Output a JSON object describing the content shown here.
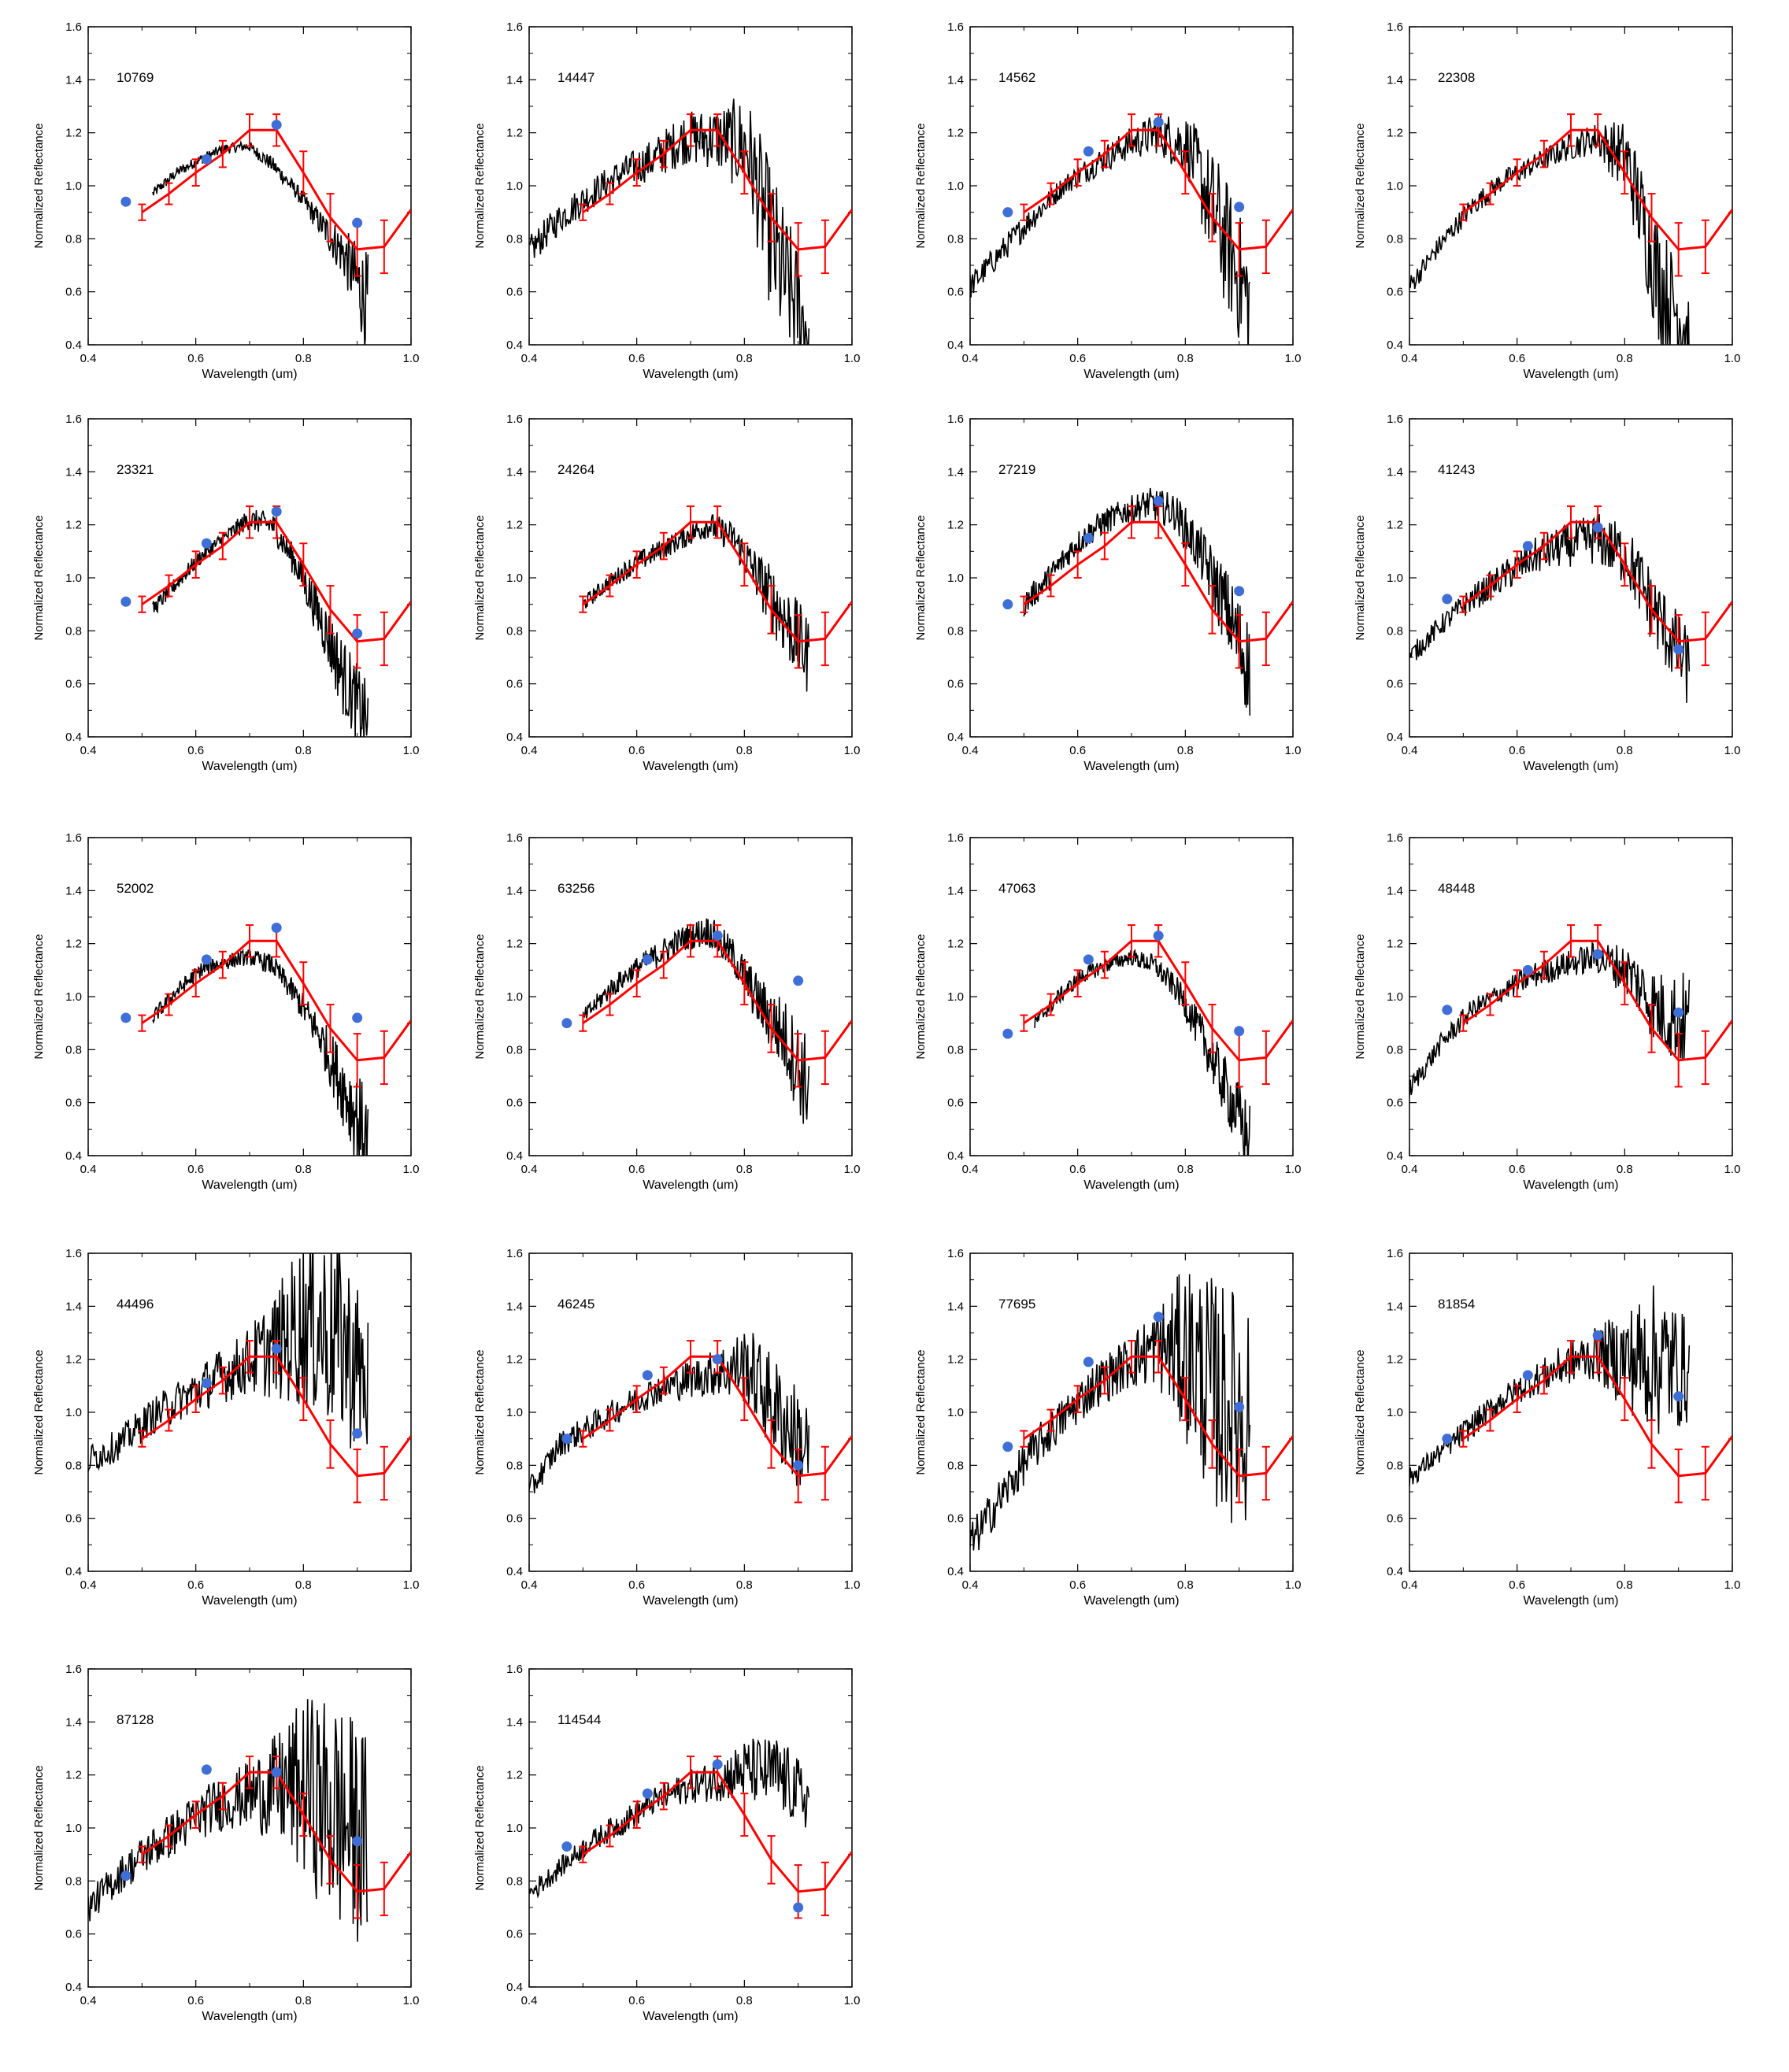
{
  "chart_data": {
    "type": "line",
    "layout": "grid of 18 panels (5 rows x 4 columns, last row has 2)",
    "xlabel": "Wavelength (um)",
    "ylabel": "Normalized Reflectance",
    "xlim": [
      0.4,
      1.0
    ],
    "ylim": [
      0.4,
      1.6
    ],
    "xticks": [
      "0.4",
      "0.6",
      "0.8",
      "1.0"
    ],
    "yticks": [
      "0.4",
      "0.6",
      "0.8",
      "1.0",
      "1.2",
      "1.4",
      "1.6"
    ],
    "grid": false,
    "colors": {
      "spectrum": "#000000",
      "model": "#ff0000",
      "photometry": "#3f6fd6"
    },
    "model_curve": {
      "x": [
        0.5,
        0.55,
        0.6,
        0.65,
        0.7,
        0.75,
        0.8,
        0.85,
        0.9,
        0.95,
        1.0
      ],
      "y": [
        0.9,
        0.97,
        1.05,
        1.12,
        1.21,
        1.21,
        1.05,
        0.88,
        0.76,
        0.77,
        0.91
      ],
      "err": [
        0.03,
        0.04,
        0.05,
        0.05,
        0.06,
        0.06,
        0.08,
        0.09,
        0.1,
        0.1,
        0.0
      ]
    },
    "panels": [
      {
        "id": "10769",
        "spectrum": {
          "x0": 0.52,
          "x1": 0.92,
          "y": [
            0.97,
            1.05,
            1.1,
            1.14,
            1.15,
            1.08,
            0.98,
            0.86,
            0.74,
            0.55
          ],
          "noise": [
            0.02,
            0.02,
            0.02,
            0.02,
            0.02,
            0.03,
            0.03,
            0.05,
            0.1,
            0.2
          ]
        },
        "points": [
          [
            0.47,
            0.94
          ],
          [
            0.62,
            1.1
          ],
          [
            0.75,
            1.23
          ],
          [
            0.9,
            0.86
          ]
        ]
      },
      {
        "id": "14447",
        "spectrum": {
          "x0": 0.4,
          "x1": 0.92,
          "y": [
            0.75,
            0.88,
            0.97,
            1.05,
            1.1,
            1.18,
            1.18,
            1.15,
            0.7,
            0.45
          ],
          "noise": [
            0.06,
            0.06,
            0.06,
            0.06,
            0.08,
            0.1,
            0.12,
            0.2,
            0.3,
            0.2
          ]
        },
        "points": []
      },
      {
        "id": "14562",
        "spectrum": {
          "x0": 0.4,
          "x1": 0.92,
          "y": [
            0.62,
            0.75,
            0.88,
            1.0,
            1.08,
            1.15,
            1.2,
            1.15,
            0.85,
            0.55
          ],
          "noise": [
            0.05,
            0.05,
            0.05,
            0.04,
            0.05,
            0.06,
            0.08,
            0.12,
            0.25,
            0.25
          ]
        },
        "points": [
          [
            0.47,
            0.9
          ],
          [
            0.62,
            1.13
          ],
          [
            0.75,
            1.24
          ],
          [
            0.9,
            0.92
          ]
        ]
      },
      {
        "id": "22308",
        "spectrum": {
          "x0": 0.4,
          "x1": 0.92,
          "y": [
            0.62,
            0.78,
            0.92,
            1.02,
            1.08,
            1.14,
            1.18,
            1.1,
            0.65,
            0.45
          ],
          "noise": [
            0.04,
            0.04,
            0.04,
            0.04,
            0.04,
            0.05,
            0.06,
            0.15,
            0.25,
            0.15
          ]
        },
        "points": []
      },
      {
        "id": "23321",
        "spectrum": {
          "x0": 0.52,
          "x1": 0.92,
          "y": [
            0.88,
            0.98,
            1.08,
            1.15,
            1.22,
            1.2,
            1.05,
            0.85,
            0.62,
            0.45
          ],
          "noise": [
            0.03,
            0.03,
            0.03,
            0.03,
            0.04,
            0.05,
            0.06,
            0.1,
            0.15,
            0.15
          ]
        },
        "points": [
          [
            0.47,
            0.91
          ],
          [
            0.62,
            1.13
          ],
          [
            0.75,
            1.25
          ],
          [
            0.9,
            0.79
          ]
        ]
      },
      {
        "id": "24264",
        "spectrum": {
          "x0": 0.5,
          "x1": 0.92,
          "y": [
            0.9,
            0.98,
            1.05,
            1.1,
            1.15,
            1.2,
            1.15,
            1.0,
            0.85,
            0.7
          ],
          "noise": [
            0.03,
            0.03,
            0.04,
            0.04,
            0.04,
            0.05,
            0.06,
            0.1,
            0.15,
            0.15
          ]
        },
        "points": []
      },
      {
        "id": "27219",
        "spectrum": {
          "x0": 0.5,
          "x1": 0.92,
          "y": [
            0.9,
            1.0,
            1.12,
            1.2,
            1.25,
            1.28,
            1.25,
            1.1,
            0.9,
            0.65
          ],
          "noise": [
            0.05,
            0.05,
            0.05,
            0.05,
            0.05,
            0.06,
            0.07,
            0.1,
            0.15,
            0.2
          ]
        },
        "points": [
          [
            0.47,
            0.9
          ],
          [
            0.62,
            1.15
          ],
          [
            0.75,
            1.29
          ],
          [
            0.9,
            0.95
          ]
        ]
      },
      {
        "id": "41243",
        "spectrum": {
          "x0": 0.4,
          "x1": 0.92,
          "y": [
            0.7,
            0.82,
            0.92,
            1.0,
            1.08,
            1.12,
            1.15,
            1.08,
            0.85,
            0.65
          ],
          "noise": [
            0.04,
            0.04,
            0.05,
            0.06,
            0.07,
            0.08,
            0.1,
            0.12,
            0.15,
            0.15
          ]
        },
        "points": [
          [
            0.47,
            0.92
          ],
          [
            0.62,
            1.12
          ],
          [
            0.75,
            1.19
          ],
          [
            0.9,
            0.73
          ]
        ]
      },
      {
        "id": "52002",
        "spectrum": {
          "x0": 0.52,
          "x1": 0.92,
          "y": [
            0.92,
            1.02,
            1.1,
            1.13,
            1.15,
            1.12,
            1.0,
            0.85,
            0.65,
            0.45
          ],
          "noise": [
            0.03,
            0.03,
            0.03,
            0.03,
            0.03,
            0.04,
            0.05,
            0.08,
            0.15,
            0.2
          ]
        },
        "points": [
          [
            0.47,
            0.92
          ],
          [
            0.62,
            1.14
          ],
          [
            0.75,
            1.26
          ],
          [
            0.9,
            0.92
          ]
        ]
      },
      {
        "id": "63256",
        "spectrum": {
          "x0": 0.5,
          "x1": 0.92,
          "y": [
            0.92,
            1.02,
            1.1,
            1.16,
            1.22,
            1.25,
            1.15,
            0.98,
            0.85,
            0.65
          ],
          "noise": [
            0.03,
            0.04,
            0.04,
            0.05,
            0.05,
            0.06,
            0.07,
            0.1,
            0.15,
            0.2
          ]
        },
        "points": [
          [
            0.47,
            0.9
          ],
          [
            0.62,
            1.14
          ],
          [
            0.75,
            1.23
          ],
          [
            0.9,
            1.06
          ]
        ]
      },
      {
        "id": "47063",
        "spectrum": {
          "x0": 0.52,
          "x1": 0.92,
          "y": [
            0.9,
            1.0,
            1.08,
            1.12,
            1.15,
            1.12,
            1.02,
            0.85,
            0.65,
            0.45
          ],
          "noise": [
            0.03,
            0.03,
            0.03,
            0.03,
            0.03,
            0.04,
            0.05,
            0.08,
            0.12,
            0.15
          ]
        },
        "points": [
          [
            0.47,
            0.86
          ],
          [
            0.62,
            1.14
          ],
          [
            0.75,
            1.23
          ],
          [
            0.9,
            0.87
          ]
        ]
      },
      {
        "id": "48448",
        "spectrum": {
          "x0": 0.4,
          "x1": 0.92,
          "y": [
            0.65,
            0.82,
            0.95,
            1.02,
            1.08,
            1.12,
            1.15,
            1.1,
            0.95,
            0.9
          ],
          "noise": [
            0.04,
            0.04,
            0.04,
            0.04,
            0.05,
            0.05,
            0.06,
            0.1,
            0.15,
            0.2
          ]
        },
        "points": [
          [
            0.47,
            0.95
          ],
          [
            0.62,
            1.1
          ],
          [
            0.75,
            1.16
          ],
          [
            0.9,
            0.94
          ]
        ]
      },
      {
        "id": "44496",
        "spectrum": {
          "x0": 0.4,
          "x1": 0.92,
          "y": [
            0.82,
            0.88,
            0.98,
            1.05,
            1.12,
            1.18,
            1.25,
            1.35,
            1.3,
            1.1
          ],
          "noise": [
            0.06,
            0.06,
            0.07,
            0.08,
            0.1,
            0.12,
            0.2,
            0.35,
            0.4,
            0.3
          ]
        },
        "points": [
          [
            0.62,
            1.11
          ],
          [
            0.75,
            1.24
          ],
          [
            0.9,
            0.92
          ]
        ]
      },
      {
        "id": "46245",
        "spectrum": {
          "x0": 0.4,
          "x1": 0.92,
          "y": [
            0.7,
            0.88,
            0.95,
            1.02,
            1.08,
            1.12,
            1.15,
            1.18,
            1.0,
            0.85
          ],
          "noise": [
            0.05,
            0.05,
            0.05,
            0.05,
            0.06,
            0.07,
            0.09,
            0.15,
            0.2,
            0.2
          ]
        },
        "points": [
          [
            0.47,
            0.9
          ],
          [
            0.62,
            1.14
          ],
          [
            0.75,
            1.2
          ],
          [
            0.9,
            0.8
          ]
        ]
      },
      {
        "id": "77695",
        "spectrum": {
          "x0": 0.4,
          "x1": 0.92,
          "y": [
            0.5,
            0.68,
            0.85,
            0.98,
            1.1,
            1.18,
            1.25,
            1.22,
            1.05,
            1.0
          ],
          "noise": [
            0.08,
            0.08,
            0.08,
            0.08,
            0.09,
            0.1,
            0.15,
            0.35,
            0.45,
            0.45
          ]
        },
        "points": [
          [
            0.47,
            0.87
          ],
          [
            0.62,
            1.19
          ],
          [
            0.75,
            1.36
          ],
          [
            0.9,
            1.02
          ]
        ]
      },
      {
        "id": "81854",
        "spectrum": {
          "x0": 0.4,
          "x1": 0.92,
          "y": [
            0.75,
            0.85,
            0.95,
            1.05,
            1.12,
            1.18,
            1.22,
            1.2,
            1.2,
            1.15
          ],
          "noise": [
            0.04,
            0.04,
            0.05,
            0.05,
            0.06,
            0.08,
            0.1,
            0.2,
            0.3,
            0.2
          ]
        },
        "points": [
          [
            0.47,
            0.9
          ],
          [
            0.62,
            1.14
          ],
          [
            0.75,
            1.29
          ],
          [
            0.9,
            1.06
          ]
        ]
      },
      {
        "id": "87128",
        "spectrum": {
          "x0": 0.4,
          "x1": 0.92,
          "y": [
            0.7,
            0.82,
            0.92,
            1.0,
            1.08,
            1.12,
            1.15,
            1.15,
            1.05,
            0.95
          ],
          "noise": [
            0.06,
            0.07,
            0.08,
            0.09,
            0.1,
            0.12,
            0.2,
            0.35,
            0.45,
            0.4
          ]
        },
        "points": [
          [
            0.47,
            0.82
          ],
          [
            0.62,
            1.22
          ],
          [
            0.75,
            1.21
          ],
          [
            0.9,
            0.95
          ]
        ]
      },
      {
        "id": "114544",
        "spectrum": {
          "x0": 0.4,
          "x1": 0.92,
          "y": [
            0.75,
            0.85,
            0.95,
            1.02,
            1.1,
            1.15,
            1.18,
            1.22,
            1.2,
            1.1
          ],
          "noise": [
            0.04,
            0.04,
            0.04,
            0.05,
            0.05,
            0.06,
            0.08,
            0.12,
            0.15,
            0.12
          ]
        },
        "points": [
          [
            0.47,
            0.93
          ],
          [
            0.62,
            1.13
          ],
          [
            0.75,
            1.24
          ],
          [
            0.9,
            0.7
          ]
        ]
      }
    ]
  }
}
